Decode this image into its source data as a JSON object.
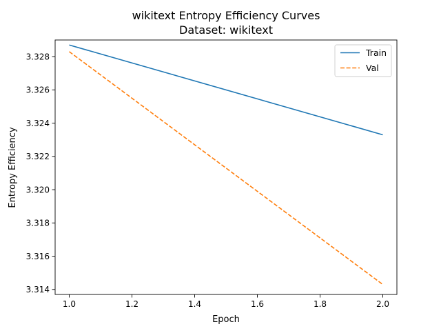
{
  "chart_data": {
    "type": "line",
    "title": "wikitext Entropy Efficiency Curves",
    "subtitle": "Dataset: wikitext",
    "xlabel": "Epoch",
    "ylabel": "Entropy Efficiency",
    "xlim": [
      0.955,
      2.045
    ],
    "ylim": [
      3.3137,
      3.329
    ],
    "xticks": [
      1.0,
      1.2,
      1.4,
      1.6,
      1.8,
      2.0
    ],
    "xtick_labels": [
      "1.0",
      "1.2",
      "1.4",
      "1.6",
      "1.8",
      "2.0"
    ],
    "yticks": [
      3.314,
      3.316,
      3.318,
      3.32,
      3.322,
      3.324,
      3.326,
      3.328
    ],
    "ytick_labels": [
      "3.314",
      "3.316",
      "3.318",
      "3.320",
      "3.322",
      "3.324",
      "3.326",
      "3.328"
    ],
    "grid": false,
    "legend_position": "upper right",
    "series": [
      {
        "name": "Train",
        "x": [
          1.0,
          2.0
        ],
        "y": [
          3.3287,
          3.3233
        ],
        "color": "#1f77b4",
        "style": "solid"
      },
      {
        "name": "Val",
        "x": [
          1.0,
          2.0
        ],
        "y": [
          3.3283,
          3.3143
        ],
        "color": "#ff7f0e",
        "style": "dashed"
      }
    ]
  }
}
